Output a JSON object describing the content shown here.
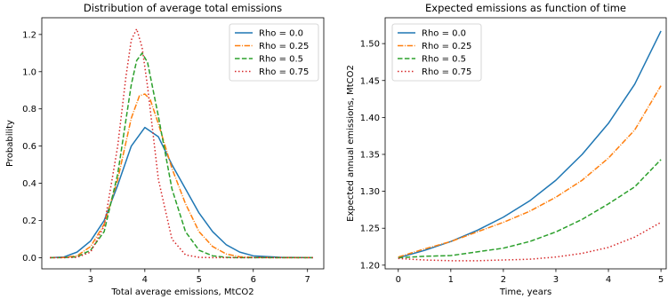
{
  "chart_data": [
    {
      "type": "line",
      "title": "Distribution of average total emissions",
      "xlabel": "Total average emissions, MtCO2",
      "ylabel": "Probability",
      "xlim": [
        2.1,
        7.3
      ],
      "ylim": [
        -0.06,
        1.29
      ],
      "xticks": [
        3,
        4,
        5,
        6,
        7
      ],
      "yticks": [
        0.0,
        0.2,
        0.4,
        0.6,
        0.8,
        1.0,
        1.2
      ],
      "ytick_labels": [
        "0.0",
        "0.2",
        "0.4",
        "0.6",
        "0.8",
        "1.0",
        "1.2"
      ],
      "grid": false,
      "legend_position": "top-right",
      "series": [
        {
          "name": "Rho = 0.0",
          "color": "#1f77b4",
          "dash": "solid",
          "x": [
            2.25,
            2.5,
            2.75,
            3.0,
            3.25,
            3.5,
            3.75,
            4.0,
            4.25,
            4.5,
            4.75,
            5.0,
            5.25,
            5.5,
            5.75,
            6.0,
            6.5,
            7.1
          ],
          "y": [
            0.0,
            0.003,
            0.03,
            0.09,
            0.2,
            0.39,
            0.6,
            0.7,
            0.65,
            0.5,
            0.37,
            0.24,
            0.14,
            0.07,
            0.03,
            0.01,
            0.002,
            0.0
          ]
        },
        {
          "name": "Rho = 0.25",
          "color": "#ff7f0e",
          "dash": "dashdot",
          "x": [
            2.25,
            2.5,
            2.75,
            3.0,
            3.25,
            3.5,
            3.75,
            3.9,
            4.0,
            4.1,
            4.25,
            4.5,
            4.75,
            5.0,
            5.25,
            5.5,
            5.75,
            6.0,
            6.5,
            7.1
          ],
          "y": [
            0.0,
            0.001,
            0.01,
            0.06,
            0.18,
            0.42,
            0.75,
            0.87,
            0.88,
            0.85,
            0.72,
            0.48,
            0.29,
            0.14,
            0.06,
            0.02,
            0.005,
            0.001,
            0.0,
            0.0
          ]
        },
        {
          "name": "Rho = 0.5",
          "color": "#2ca02c",
          "dash": "dashed",
          "x": [
            2.25,
            2.5,
            2.75,
            3.0,
            3.25,
            3.5,
            3.75,
            3.85,
            3.95,
            4.05,
            4.25,
            4.5,
            4.75,
            5.0,
            5.25,
            5.5,
            5.75,
            6.0,
            6.5,
            7.1
          ],
          "y": [
            0.0,
            0.0,
            0.005,
            0.04,
            0.14,
            0.45,
            0.93,
            1.06,
            1.1,
            1.05,
            0.76,
            0.37,
            0.14,
            0.04,
            0.01,
            0.002,
            0.0,
            0.0,
            0.0,
            0.0
          ]
        },
        {
          "name": "Rho = 0.75",
          "color": "#d62728",
          "dash": "dotted",
          "x": [
            2.25,
            2.5,
            2.75,
            3.0,
            3.25,
            3.5,
            3.65,
            3.75,
            3.85,
            3.95,
            4.05,
            4.25,
            4.5,
            4.75,
            5.0,
            5.25,
            5.5,
            6.0,
            6.5,
            7.1
          ],
          "y": [
            0.0,
            0.0,
            0.002,
            0.03,
            0.17,
            0.6,
            0.97,
            1.17,
            1.23,
            1.13,
            0.92,
            0.42,
            0.1,
            0.015,
            0.002,
            0.0,
            0.0,
            0.0,
            0.0,
            0.0
          ]
        }
      ]
    },
    {
      "type": "line",
      "title": "Expected emissions as function of time",
      "xlabel": "Time, years",
      "ylabel": "Expected annual emissions, MtCO2",
      "xlim": [
        -0.25,
        5.1
      ],
      "ylim": [
        1.195,
        1.535
      ],
      "xticks": [
        0,
        1,
        2,
        3,
        4,
        5
      ],
      "yticks": [
        1.2,
        1.25,
        1.3,
        1.35,
        1.4,
        1.45,
        1.5
      ],
      "ytick_labels": [
        "1.20",
        "1.25",
        "1.30",
        "1.35",
        "1.40",
        "1.45",
        "1.50"
      ],
      "grid": false,
      "legend_position": "top-left",
      "series": [
        {
          "name": "Rho = 0.0",
          "color": "#1f77b4",
          "dash": "solid",
          "x": [
            0,
            0.5,
            1,
            1.5,
            2,
            2.5,
            3,
            3.5,
            4,
            4.5,
            5
          ],
          "y": [
            1.21,
            1.22,
            1.232,
            1.247,
            1.265,
            1.287,
            1.315,
            1.35,
            1.392,
            1.445,
            1.517
          ]
        },
        {
          "name": "Rho = 0.25",
          "color": "#ff7f0e",
          "dash": "dashdot",
          "x": [
            0,
            0.5,
            1,
            1.5,
            2,
            2.5,
            3,
            3.5,
            4,
            4.5,
            5
          ],
          "y": [
            1.211,
            1.222,
            1.232,
            1.245,
            1.258,
            1.273,
            1.292,
            1.315,
            1.345,
            1.383,
            1.443
          ]
        },
        {
          "name": "Rho = 0.5",
          "color": "#2ca02c",
          "dash": "dashed",
          "x": [
            0,
            0.5,
            1,
            1.5,
            2,
            2.5,
            3,
            3.5,
            4,
            4.5,
            5
          ],
          "y": [
            1.21,
            1.212,
            1.213,
            1.218,
            1.223,
            1.232,
            1.245,
            1.262,
            1.283,
            1.306,
            1.343
          ]
        },
        {
          "name": "Rho = 0.75",
          "color": "#d62728",
          "dash": "dotted",
          "x": [
            0,
            0.5,
            1,
            1.5,
            2,
            2.5,
            3,
            3.5,
            4,
            4.5,
            5
          ],
          "y": [
            1.209,
            1.207,
            1.206,
            1.206,
            1.207,
            1.208,
            1.211,
            1.216,
            1.224,
            1.238,
            1.258
          ]
        }
      ]
    }
  ]
}
